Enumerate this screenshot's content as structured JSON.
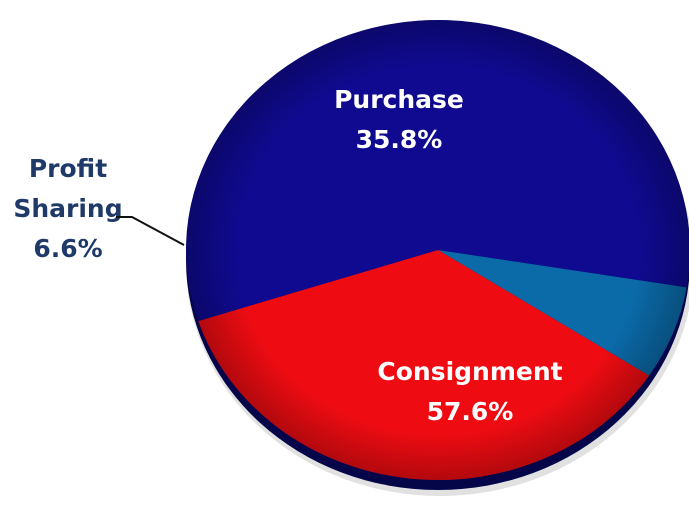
{
  "chart_data": {
    "type": "pie",
    "title": "",
    "slices": [
      {
        "label": "Consignment",
        "line1": "Consignment",
        "line2": "",
        "value": 57.6,
        "value_label": "57.6%",
        "color": "#0f0a8f",
        "label_color": "#ffffff"
      },
      {
        "label": "Profit Sharing",
        "line1": "Profit",
        "line2": "Sharing",
        "value": 6.6,
        "value_label": "6.6%",
        "color": "#0b6aa8",
        "label_color": "#1f3a68"
      },
      {
        "label": "Purchase",
        "line1": "Purchase",
        "line2": "",
        "value": 35.8,
        "value_label": "35.8%",
        "color": "#ee0c12",
        "label_color": "#ffffff"
      }
    ],
    "legend": "none",
    "style": "3d-shaded"
  }
}
